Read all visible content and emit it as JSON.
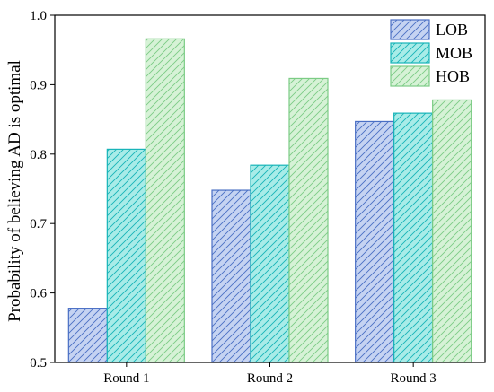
{
  "chart_data": {
    "type": "bar",
    "title": "",
    "xlabel": "",
    "ylabel": "Probability of believing AD is optimal",
    "categories": [
      "Round 1",
      "Round 2",
      "Round 3"
    ],
    "series": [
      {
        "name": "LOB",
        "values": [
          0.578,
          0.748,
          0.847
        ],
        "fill": "#c5d3f2",
        "stroke": "#4a6fc4"
      },
      {
        "name": "MOB",
        "values": [
          0.807,
          0.784,
          0.859
        ],
        "fill": "#a8ece8",
        "stroke": "#17b4b8"
      },
      {
        "name": "HOB",
        "values": [
          0.966,
          0.909,
          0.878
        ],
        "fill": "#d6f2d6",
        "stroke": "#7ccc85"
      }
    ],
    "ylim": [
      0.5,
      1.0
    ],
    "yticks": [
      "0.5",
      "0.6",
      "0.7",
      "0.8",
      "0.9",
      "1.0"
    ],
    "hatch": "diagonal",
    "grid": false,
    "legend_position": "top-right"
  }
}
